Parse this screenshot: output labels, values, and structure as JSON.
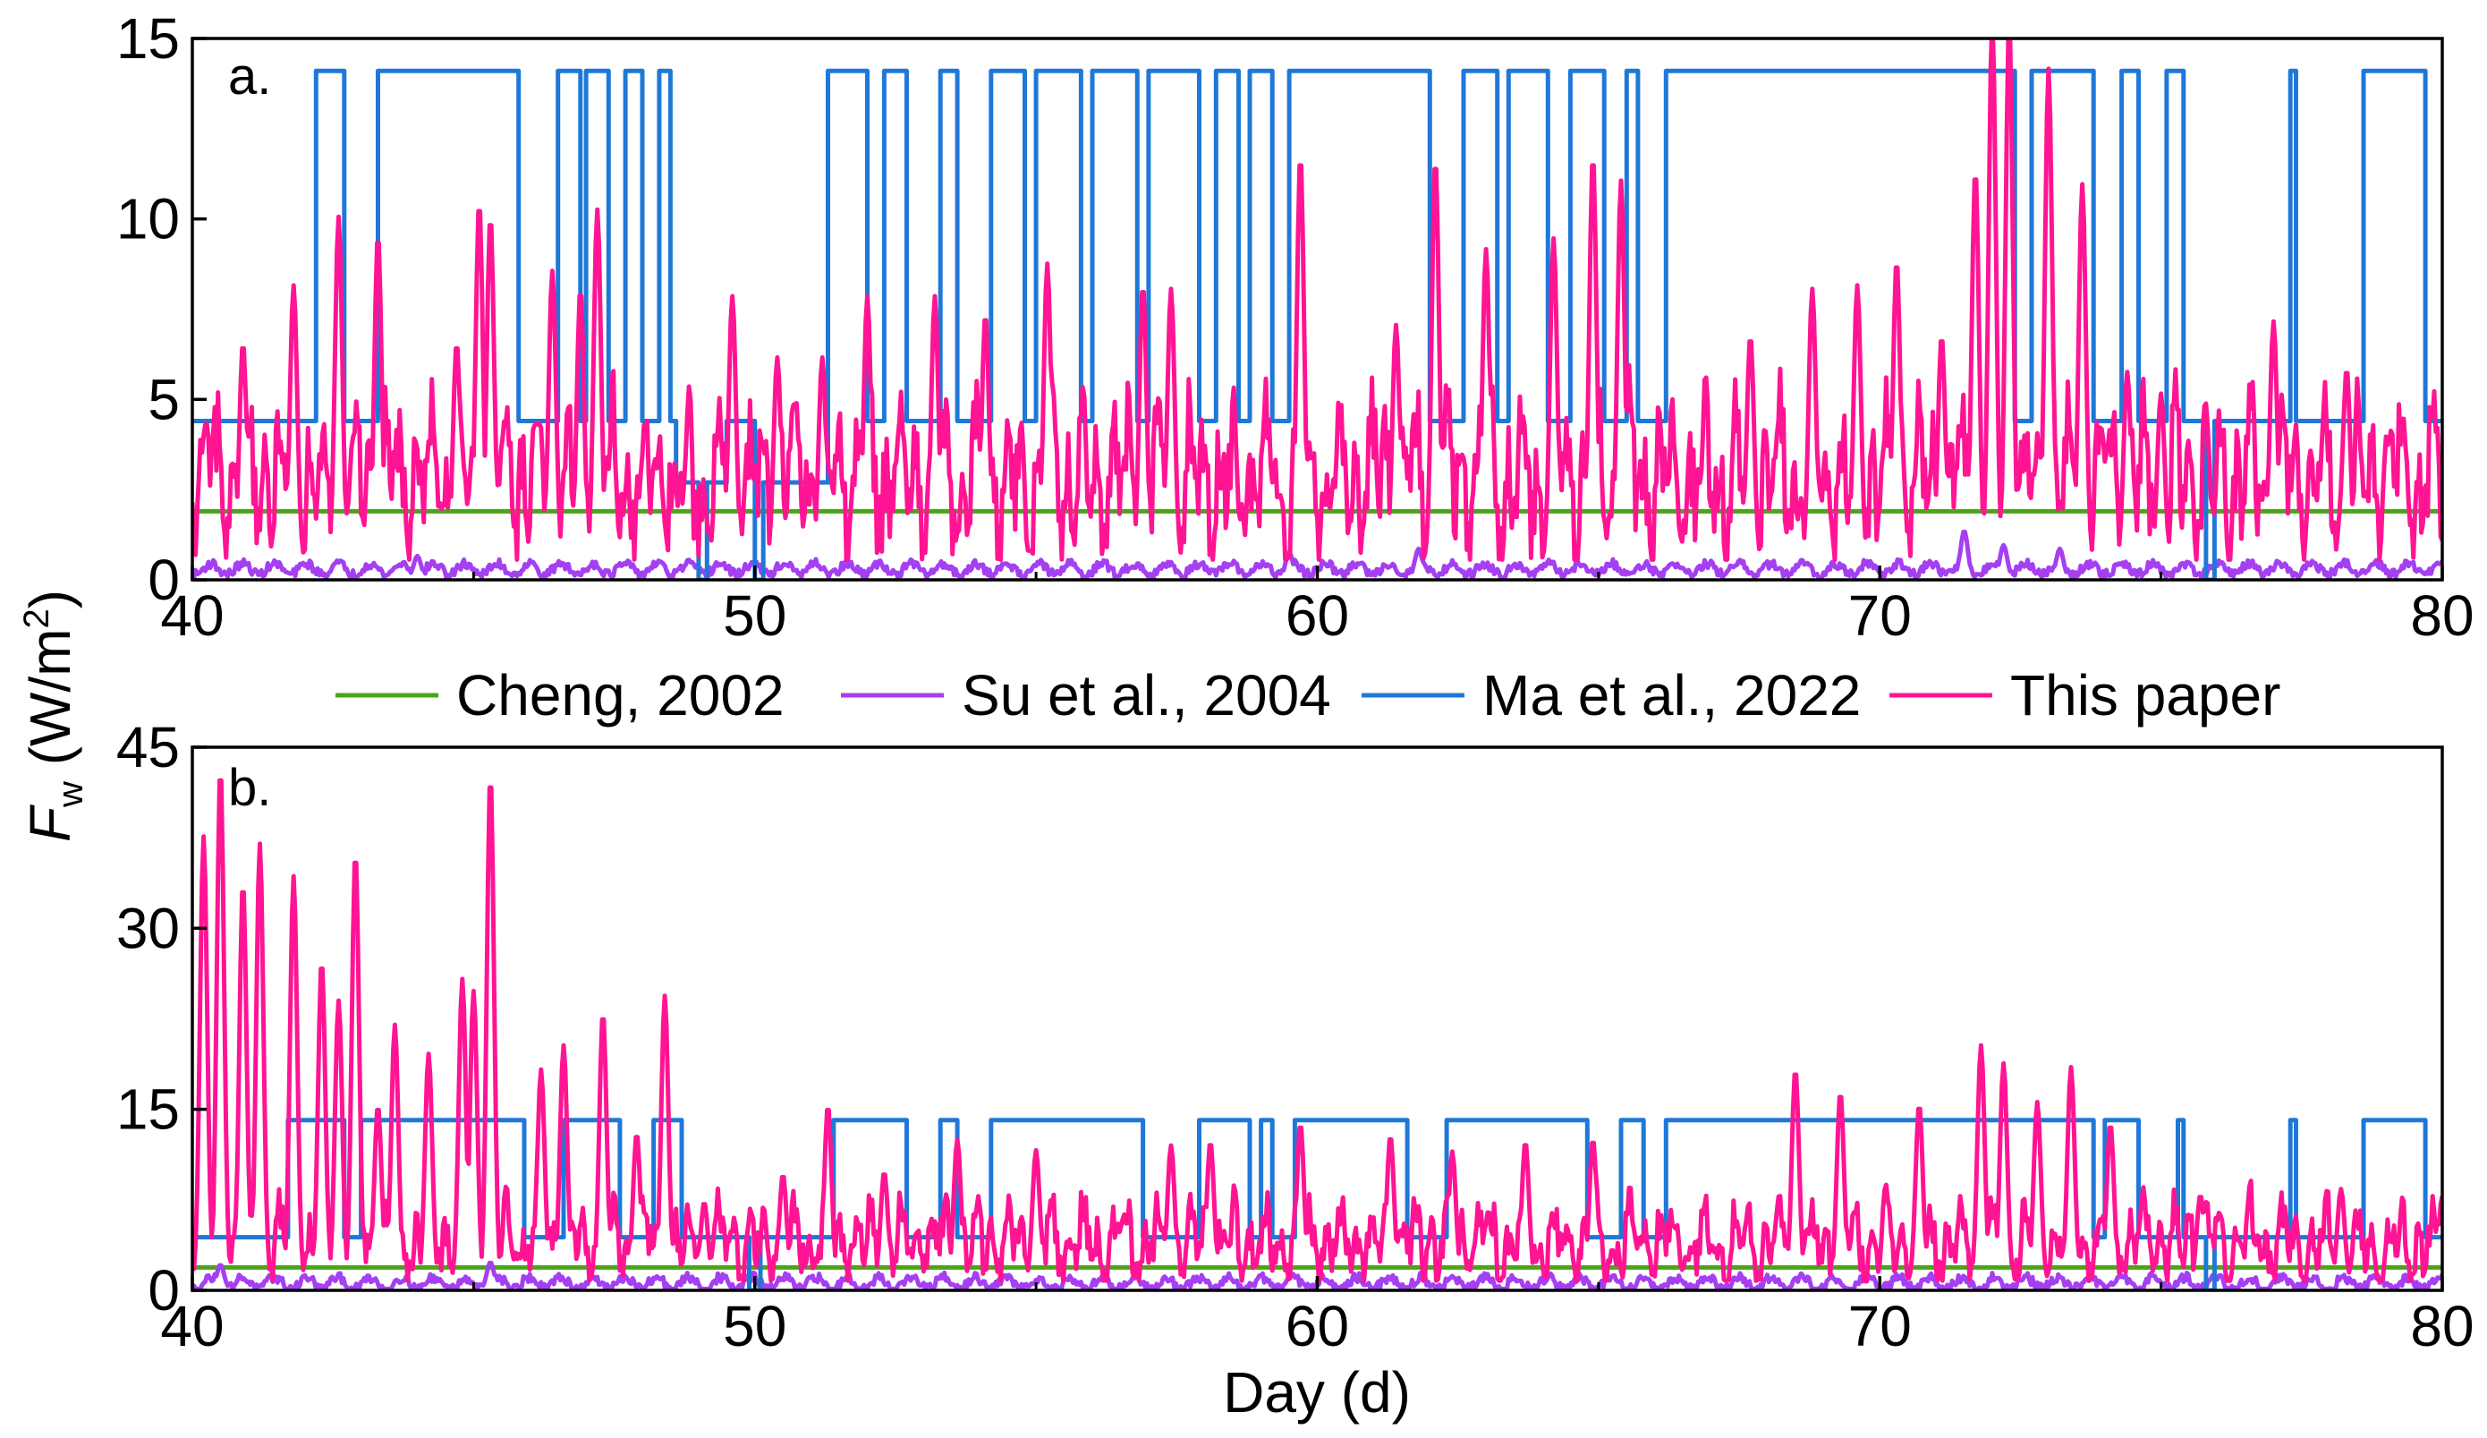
{
  "ylabel": {
    "symbol": "F",
    "subscript": "w",
    "units": " (W/m",
    "sup": "2",
    "close": ")"
  },
  "xlabel": "Day (d)",
  "legend": [
    {
      "label": "Cheng, 2002",
      "color": "#4aa516"
    },
    {
      "label": "Su et al., 2004",
      "color": "#a53ff2"
    },
    {
      "label": "Ma et al., 2022",
      "color": "#1f78d8"
    },
    {
      "label": "This paper",
      "color": "#ff1493"
    }
  ],
  "chart_data": [
    {
      "panel": "a.",
      "type": "line",
      "xlim": [
        40,
        80
      ],
      "ylim": [
        0,
        15
      ],
      "xticks": [
        40,
        50,
        60,
        70,
        80
      ],
      "yticks": [
        0,
        5,
        10,
        15
      ],
      "series": [
        {
          "name": "Cheng, 2002",
          "constant": 1.9
        },
        {
          "name": "Su et al., 2004",
          "base": 0.3,
          "amp": 0.25,
          "peaks": [
            [
              44,
              0.6
            ],
            [
              59.5,
              0.7
            ],
            [
              61.8,
              0.8
            ],
            [
              71.5,
              1.3
            ],
            [
              72.2,
              0.9
            ],
            [
              73.2,
              0.8
            ]
          ]
        },
        {
          "name": "Ma et al., 2022",
          "low": 4.4,
          "high": 14.1,
          "dip": 0,
          "high_intervals": [
            [
              42.2,
              42.7
            ],
            [
              43.3,
              45.8
            ],
            [
              46.5,
              46.9
            ],
            [
              47.0,
              47.4
            ],
            [
              47.7,
              48.0
            ],
            [
              48.3,
              48.5
            ],
            [
              51.3,
              52.0
            ],
            [
              52.3,
              52.7
            ],
            [
              53.3,
              53.6
            ],
            [
              54.2,
              54.8
            ],
            [
              55.0,
              55.8
            ],
            [
              56.0,
              56.8
            ],
            [
              57.0,
              57.9
            ],
            [
              58.2,
              58.6
            ],
            [
              58.8,
              59.2
            ],
            [
              59.5,
              62.0
            ],
            [
              62.6,
              63.2
            ],
            [
              63.4,
              64.1
            ],
            [
              64.5,
              65.1
            ],
            [
              65.5,
              65.7
            ],
            [
              66.2,
              72.4
            ],
            [
              72.7,
              73.8
            ],
            [
              74.3,
              74.6
            ],
            [
              75.1,
              75.4
            ],
            [
              77.3,
              77.4
            ],
            [
              78.6,
              79.7
            ]
          ],
          "dip_intervals": [
            [
              49.0,
              49.15
            ],
            [
              50.0,
              50.15
            ],
            [
              75.8,
              75.95
            ]
          ],
          "mid_intervals": [
            [
              48.6,
              49.5
            ],
            [
              50.0,
              51.3
            ]
          ],
          "mid_value": 2.7
        },
        {
          "name": "This paper",
          "base": 2.8,
          "noise": 1.9,
          "peaks": [
            [
              40.9,
              6.0
            ],
            [
              41.8,
              7.6
            ],
            [
              42.6,
              9.5
            ],
            [
              43.3,
              9.0
            ],
            [
              44.7,
              6.0
            ],
            [
              45.1,
              9.9
            ],
            [
              45.3,
              9.5
            ],
            [
              46.4,
              8.0
            ],
            [
              46.9,
              7.5
            ],
            [
              47.2,
              9.7
            ],
            [
              49.6,
              7.3
            ],
            [
              50.4,
              5.6
            ],
            [
              51.2,
              5.6
            ],
            [
              52.0,
              7.3
            ],
            [
              53.2,
              7.3
            ],
            [
              54.1,
              6.8
            ],
            [
              55.2,
              8.2
            ],
            [
              56.9,
              7.6
            ],
            [
              57.4,
              7.5
            ],
            [
              59.7,
              11.2
            ],
            [
              61.4,
              6.5
            ],
            [
              62.1,
              11.1
            ],
            [
              63.0,
              8.6
            ],
            [
              64.2,
              8.9
            ],
            [
              64.9,
              11.2
            ],
            [
              65.4,
              10.5
            ],
            [
              67.7,
              6.2
            ],
            [
              68.8,
              7.5
            ],
            [
              69.6,
              7.6
            ],
            [
              70.3,
              8.3
            ],
            [
              71.1,
              6.2
            ],
            [
              71.7,
              10.8
            ],
            [
              72.0,
              15.0
            ],
            [
              72.3,
              14.9
            ],
            [
              73.0,
              13.6
            ],
            [
              73.6,
              10.4
            ],
            [
              74.4,
              5.2
            ],
            [
              75.0,
              4.6
            ],
            [
              77.0,
              6.6
            ],
            [
              78.3,
              5.3
            ],
            [
              79.3,
              4.0
            ]
          ]
        }
      ]
    },
    {
      "panel": "b.",
      "type": "line",
      "xlim": [
        40,
        80
      ],
      "ylim": [
        0,
        45
      ],
      "xticks": [
        40,
        50,
        60,
        70,
        80
      ],
      "yticks": [
        0,
        15,
        30,
        45
      ],
      "series": [
        {
          "name": "Cheng, 2002",
          "constant": 1.9
        },
        {
          "name": "Su et al., 2004",
          "base": 0.6,
          "amp": 0.8,
          "peaks": [
            [
              40.5,
              2.0
            ],
            [
              45.3,
              2.2
            ]
          ]
        },
        {
          "name": "Ma et al., 2022",
          "low": 4.4,
          "high": 14.1,
          "dip": 0,
          "high_intervals": [
            [
              41.7,
              42.7
            ],
            [
              43.0,
              45.9
            ],
            [
              46.6,
              47.6
            ],
            [
              48.2,
              48.7
            ],
            [
              51.4,
              52.7
            ],
            [
              53.3,
              53.6
            ],
            [
              54.2,
              56.9
            ],
            [
              57.9,
              58.8
            ],
            [
              59.0,
              59.2
            ],
            [
              59.6,
              61.6
            ],
            [
              62.3,
              64.8
            ],
            [
              65.4,
              65.8
            ],
            [
              66.2,
              73.8
            ],
            [
              74.0,
              74.6
            ],
            [
              75.3,
              75.4
            ],
            [
              77.3,
              77.4
            ],
            [
              78.6,
              79.7
            ]
          ],
          "dip_intervals": [
            [
              49.9,
              50.1
            ],
            [
              75.8,
              75.95
            ]
          ],
          "mid_intervals": [],
          "mid_value": 4.4
        },
        {
          "name": "This paper",
          "base": 4.0,
          "noise": 3.0,
          "peaks": [
            [
              40.2,
              36.8
            ],
            [
              40.5,
              42.5
            ],
            [
              40.9,
              33.0
            ],
            [
              41.2,
              36.2
            ],
            [
              41.8,
              33.5
            ],
            [
              42.3,
              26.5
            ],
            [
              42.6,
              23.2
            ],
            [
              42.9,
              35.5
            ],
            [
              43.3,
              14.5
            ],
            [
              43.6,
              21.2
            ],
            [
              44.2,
              18.8
            ],
            [
              44.8,
              25.0
            ],
            [
              45.0,
              24.0
            ],
            [
              45.3,
              41.9
            ],
            [
              46.2,
              17.5
            ],
            [
              46.6,
              19.5
            ],
            [
              47.3,
              22.2
            ],
            [
              47.9,
              12.2
            ],
            [
              48.4,
              23.6
            ],
            [
              49.1,
              6.5
            ],
            [
              50.5,
              8.8
            ],
            [
              51.3,
              14.5
            ],
            [
              52.3,
              9.0
            ],
            [
              53.6,
              11.7
            ],
            [
              55.0,
              10.8
            ],
            [
              57.4,
              11.2
            ],
            [
              58.1,
              11.5
            ],
            [
              59.7,
              13.0
            ],
            [
              61.3,
              12.0
            ],
            [
              62.4,
              10.7
            ],
            [
              63.7,
              11.5
            ],
            [
              64.9,
              11.7
            ],
            [
              68.5,
              17.5
            ],
            [
              69.3,
              15.6
            ],
            [
              70.7,
              14.6
            ],
            [
              71.8,
              19.5
            ],
            [
              72.2,
              18.0
            ],
            [
              72.8,
              14.8
            ],
            [
              73.4,
              17.7
            ],
            [
              74.1,
              13.0
            ],
            [
              75.7,
              7.1
            ],
            [
              78.2,
              7.6
            ],
            [
              80.0,
              7.0
            ]
          ]
        }
      ]
    }
  ]
}
